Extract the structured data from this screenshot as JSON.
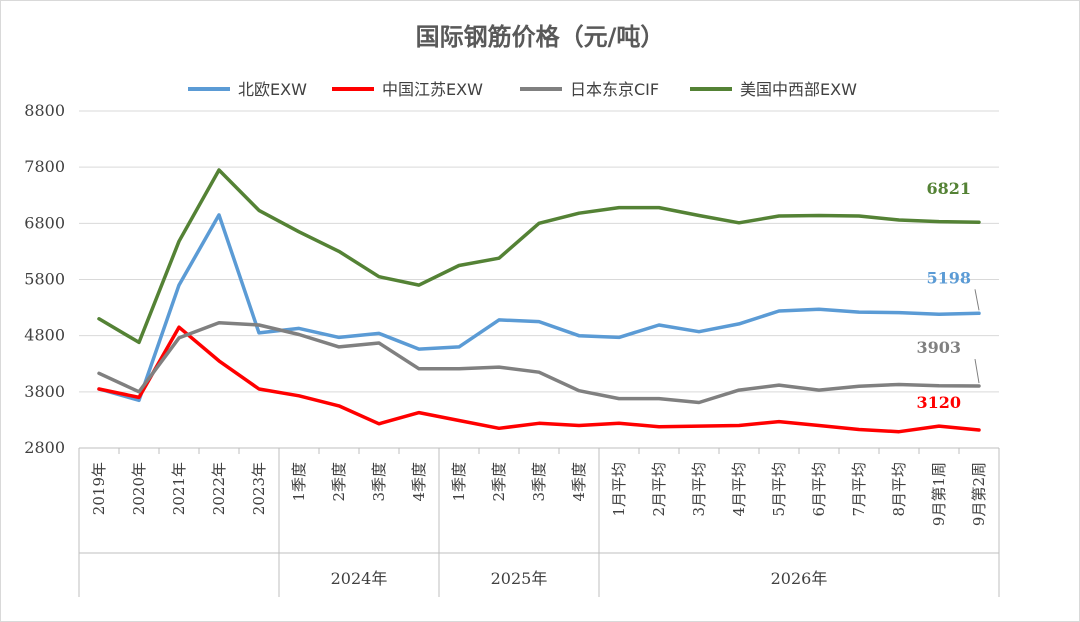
{
  "chart_data": {
    "type": "line",
    "title": "国际钢筋价格（元/吨）",
    "categories": [
      "2019年",
      "2020年",
      "2021年",
      "2022年",
      "2023年",
      "1季度",
      "2季度",
      "3季度",
      "4季度",
      "1季度",
      "2季度",
      "3季度",
      "4季度",
      "1月平均",
      "2月平均",
      "3月平均",
      "4月平均",
      "5月平均",
      "6月平均",
      "7月平均",
      "8月平均",
      "9月第1周",
      "9月第2周"
    ],
    "groups": [
      {
        "label": "",
        "start": 0,
        "end": 4
      },
      {
        "label": "2024年",
        "start": 5,
        "end": 8
      },
      {
        "label": "2025年",
        "start": 9,
        "end": 12
      },
      {
        "label": "2026年",
        "start": 13,
        "end": 22
      }
    ],
    "series": [
      {
        "name": "北欧EXW",
        "color": "#5b9bd5",
        "values": [
          3850,
          3650,
          5700,
          6950,
          4850,
          4930,
          4770,
          4840,
          4560,
          4600,
          5080,
          5050,
          4800,
          4770,
          4990,
          4870,
          5010,
          5240,
          5270,
          5220,
          5210,
          5180,
          5198
        ]
      },
      {
        "name": "中国江苏EXW",
        "color": "#ff0000",
        "values": [
          3850,
          3700,
          4950,
          4350,
          3850,
          3730,
          3550,
          3230,
          3430,
          3290,
          3150,
          3240,
          3200,
          3240,
          3180,
          3190,
          3200,
          3270,
          3200,
          3130,
          3090,
          3190,
          3120
        ]
      },
      {
        "name": "日本东京CIF",
        "color": "#808080",
        "values": [
          4130,
          3800,
          4760,
          5030,
          4990,
          4820,
          4600,
          4670,
          4210,
          4210,
          4240,
          4150,
          3820,
          3680,
          3680,
          3610,
          3830,
          3920,
          3830,
          3900,
          3930,
          3910,
          3903
        ]
      },
      {
        "name": "美国中西部EXW",
        "color": "#548235",
        "values": [
          5100,
          4680,
          6480,
          7750,
          7030,
          6650,
          6300,
          5850,
          5700,
          6050,
          6180,
          6800,
          6980,
          7080,
          7080,
          6940,
          6810,
          6930,
          6940,
          6930,
          6860,
          6830,
          6821
        ]
      }
    ],
    "end_labels": [
      "5198",
      "3120",
      "3903",
      "6821"
    ],
    "y_ticks": [
      "2800",
      "3800",
      "4800",
      "5800",
      "6800",
      "7800",
      "8800"
    ],
    "ylim": [
      2800,
      8800
    ],
    "grid": true,
    "legend_position": "top"
  }
}
